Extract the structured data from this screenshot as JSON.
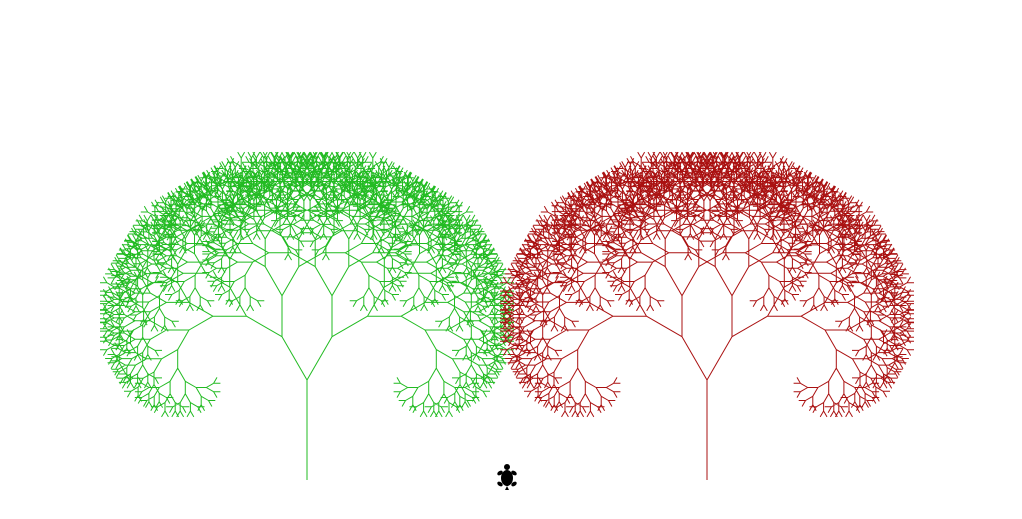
{
  "scene": {
    "background_color": "#ffffff",
    "trees": [
      {
        "name": "green-tree",
        "color": "#22bb22",
        "branch_depth": 11,
        "spread_angle_deg": 30,
        "branch_ratio": 0.82
      },
      {
        "name": "red-tree",
        "color": "#aa1111",
        "branch_depth": 11,
        "spread_angle_deg": 30,
        "branch_ratio": 0.82
      }
    ],
    "turtle": {
      "icon": "turtle-icon",
      "color": "#000000"
    }
  }
}
